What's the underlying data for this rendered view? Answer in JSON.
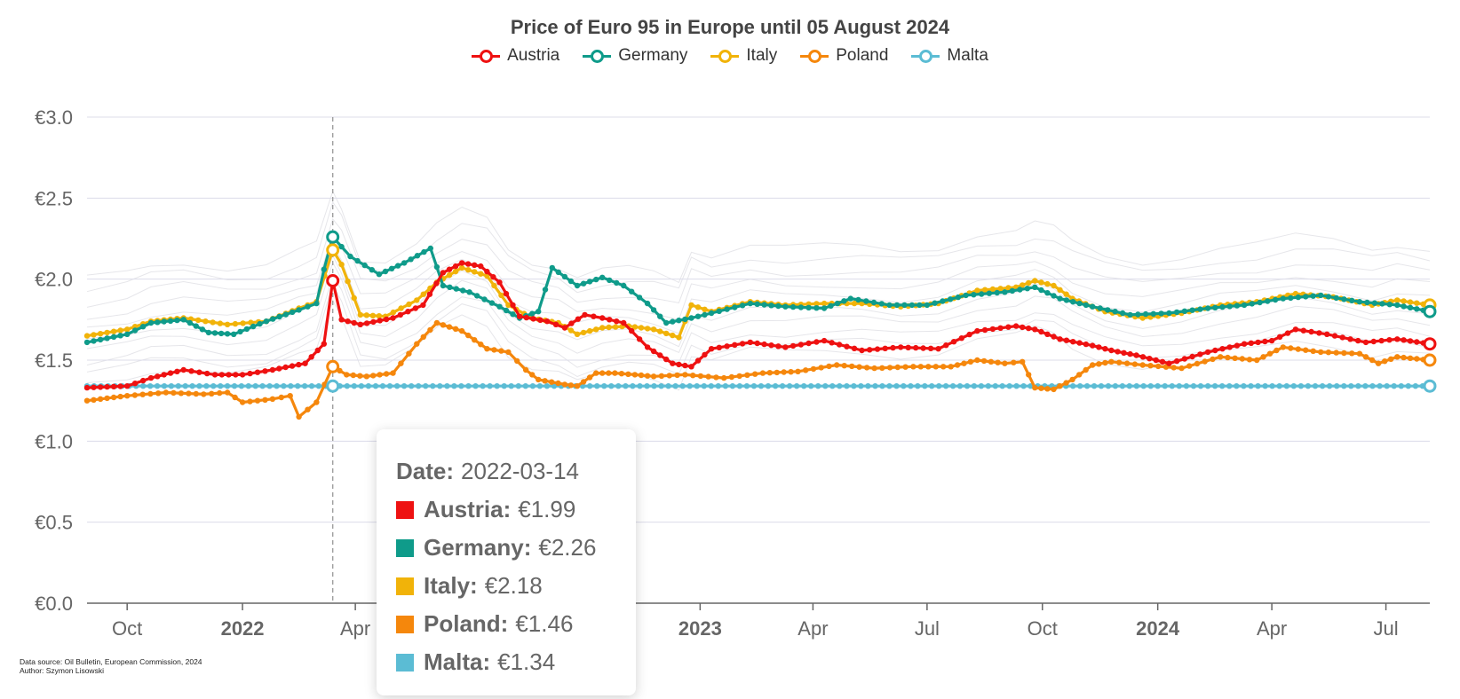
{
  "title": "Price of Euro 95 in Europe until 05 August 2024",
  "source_lines": [
    "Data source: Oil Bulletin, European Commission, 2024",
    "Author: Szymon Lisowski"
  ],
  "tooltip": {
    "date_label": "Date:",
    "date": "2022-03-14",
    "rows": [
      {
        "label": "Austria:",
        "value": "€1.99",
        "color": "#ee1111"
      },
      {
        "label": "Germany:",
        "value": "€2.26",
        "color": "#0f9b8a"
      },
      {
        "label": "Italy:",
        "value": "€2.18",
        "color": "#f1b309"
      },
      {
        "label": "Poland:",
        "value": "€1.46",
        "color": "#f5870c"
      },
      {
        "label": "Malta:",
        "value": "€1.34",
        "color": "#5bbcd4"
      }
    ]
  },
  "chart_data": {
    "type": "line",
    "title": "Price of Euro 95 in Europe until 05 August 2024",
    "xlabel": "",
    "ylabel": "",
    "ylim": [
      0,
      3.0
    ],
    "xlim": [
      "2021-08-30",
      "2024-08-05"
    ],
    "y_ticks": [
      "€0.0",
      "€0.5",
      "€1.0",
      "€1.5",
      "€2.0",
      "€2.5",
      "€3.0"
    ],
    "x_ticks": [
      {
        "date": "2021-10-01",
        "label": "Oct",
        "bold": false
      },
      {
        "date": "2022-01-01",
        "label": "2022",
        "bold": true
      },
      {
        "date": "2022-04-01",
        "label": "Apr",
        "bold": false
      },
      {
        "date": "2023-01-01",
        "label": "2023",
        "bold": true
      },
      {
        "date": "2023-04-01",
        "label": "Apr",
        "bold": false
      },
      {
        "date": "2023-07-01",
        "label": "Jul",
        "bold": false
      },
      {
        "date": "2023-10-01",
        "label": "Oct",
        "bold": false
      },
      {
        "date": "2024-01-01",
        "label": "2024",
        "bold": true
      },
      {
        "date": "2024-04-01",
        "label": "Apr",
        "bold": false
      },
      {
        "date": "2024-07-01",
        "label": "Jul",
        "bold": false
      }
    ],
    "grid": true,
    "legend_position": "top-center",
    "crosshair_date": "2022-03-14",
    "series": [
      {
        "name": "Austria",
        "color": "#ee1111",
        "points": [
          [
            "2021-08-30",
            1.33
          ],
          [
            "2021-10-01",
            1.34
          ],
          [
            "2021-10-20",
            1.39
          ],
          [
            "2021-11-15",
            1.44
          ],
          [
            "2021-12-10",
            1.41
          ],
          [
            "2022-01-01",
            1.41
          ],
          [
            "2022-01-25",
            1.44
          ],
          [
            "2022-02-20",
            1.48
          ],
          [
            "2022-03-07",
            1.6
          ],
          [
            "2022-03-14",
            1.99
          ],
          [
            "2022-03-21",
            1.75
          ],
          [
            "2022-04-05",
            1.72
          ],
          [
            "2022-05-01",
            1.76
          ],
          [
            "2022-05-25",
            1.84
          ],
          [
            "2022-06-10",
            2.04
          ],
          [
            "2022-06-25",
            2.1
          ],
          [
            "2022-07-10",
            2.08
          ],
          [
            "2022-07-25",
            1.98
          ],
          [
            "2022-08-10",
            1.77
          ],
          [
            "2022-09-01",
            1.74
          ],
          [
            "2022-09-15",
            1.7
          ],
          [
            "2022-10-01",
            1.78
          ],
          [
            "2022-10-15",
            1.76
          ],
          [
            "2022-11-01",
            1.73
          ],
          [
            "2022-11-20",
            1.58
          ],
          [
            "2022-12-10",
            1.48
          ],
          [
            "2022-12-25",
            1.46
          ],
          [
            "2023-01-10",
            1.57
          ],
          [
            "2023-02-10",
            1.61
          ],
          [
            "2023-03-10",
            1.58
          ],
          [
            "2023-04-10",
            1.62
          ],
          [
            "2023-05-10",
            1.56
          ],
          [
            "2023-06-10",
            1.58
          ],
          [
            "2023-07-10",
            1.57
          ],
          [
            "2023-08-10",
            1.68
          ],
          [
            "2023-09-10",
            1.71
          ],
          [
            "2023-09-25",
            1.69
          ],
          [
            "2023-10-15",
            1.63
          ],
          [
            "2023-11-10",
            1.59
          ],
          [
            "2023-11-25",
            1.56
          ],
          [
            "2023-12-15",
            1.53
          ],
          [
            "2024-01-10",
            1.48
          ],
          [
            "2024-02-10",
            1.55
          ],
          [
            "2024-03-10",
            1.6
          ],
          [
            "2024-04-01",
            1.62
          ],
          [
            "2024-04-20",
            1.69
          ],
          [
            "2024-05-15",
            1.66
          ],
          [
            "2024-06-15",
            1.61
          ],
          [
            "2024-07-10",
            1.63
          ],
          [
            "2024-08-05",
            1.6
          ]
        ]
      },
      {
        "name": "Germany",
        "color": "#0f9b8a",
        "points": [
          [
            "2021-08-30",
            1.61
          ],
          [
            "2021-10-01",
            1.66
          ],
          [
            "2021-10-20",
            1.73
          ],
          [
            "2021-11-15",
            1.75
          ],
          [
            "2021-12-05",
            1.67
          ],
          [
            "2021-12-25",
            1.66
          ],
          [
            "2022-01-20",
            1.74
          ],
          [
            "2022-02-15",
            1.81
          ],
          [
            "2022-03-01",
            1.85
          ],
          [
            "2022-03-07",
            2.06
          ],
          [
            "2022-03-14",
            2.26
          ],
          [
            "2022-03-28",
            2.14
          ],
          [
            "2022-04-20",
            2.03
          ],
          [
            "2022-05-10",
            2.1
          ],
          [
            "2022-05-31",
            2.19
          ],
          [
            "2022-06-10",
            1.96
          ],
          [
            "2022-07-01",
            1.92
          ],
          [
            "2022-07-25",
            1.83
          ],
          [
            "2022-08-10",
            1.76
          ],
          [
            "2022-08-25",
            1.8
          ],
          [
            "2022-09-05",
            2.07
          ],
          [
            "2022-09-25",
            1.96
          ],
          [
            "2022-10-15",
            2.01
          ],
          [
            "2022-11-01",
            1.96
          ],
          [
            "2022-11-20",
            1.85
          ],
          [
            "2022-12-05",
            1.73
          ],
          [
            "2022-12-25",
            1.76
          ],
          [
            "2023-01-10",
            1.79
          ],
          [
            "2023-02-10",
            1.85
          ],
          [
            "2023-03-10",
            1.83
          ],
          [
            "2023-04-10",
            1.82
          ],
          [
            "2023-05-01",
            1.88
          ],
          [
            "2023-06-01",
            1.84
          ],
          [
            "2023-07-01",
            1.84
          ],
          [
            "2023-08-01",
            1.9
          ],
          [
            "2023-09-01",
            1.92
          ],
          [
            "2023-09-25",
            1.95
          ],
          [
            "2023-10-15",
            1.88
          ],
          [
            "2023-11-10",
            1.83
          ],
          [
            "2023-12-10",
            1.78
          ],
          [
            "2024-01-10",
            1.79
          ],
          [
            "2024-02-10",
            1.82
          ],
          [
            "2024-03-10",
            1.84
          ],
          [
            "2024-04-10",
            1.88
          ],
          [
            "2024-05-10",
            1.9
          ],
          [
            "2024-06-10",
            1.86
          ],
          [
            "2024-07-10",
            1.84
          ],
          [
            "2024-08-05",
            1.8
          ]
        ]
      },
      {
        "name": "Italy",
        "color": "#f1b309",
        "points": [
          [
            "2021-08-30",
            1.65
          ],
          [
            "2021-10-01",
            1.69
          ],
          [
            "2021-10-20",
            1.74
          ],
          [
            "2021-11-15",
            1.76
          ],
          [
            "2021-12-20",
            1.72
          ],
          [
            "2022-01-20",
            1.74
          ],
          [
            "2022-02-15",
            1.82
          ],
          [
            "2022-03-01",
            1.86
          ],
          [
            "2022-03-14",
            2.18
          ],
          [
            "2022-03-21",
            2.09
          ],
          [
            "2022-04-05",
            1.78
          ],
          [
            "2022-04-25",
            1.77
          ],
          [
            "2022-05-20",
            1.87
          ],
          [
            "2022-06-05",
            1.98
          ],
          [
            "2022-06-25",
            2.07
          ],
          [
            "2022-07-15",
            2.02
          ],
          [
            "2022-08-01",
            1.84
          ],
          [
            "2022-08-20",
            1.76
          ],
          [
            "2022-09-10",
            1.73
          ],
          [
            "2022-09-25",
            1.66
          ],
          [
            "2022-10-15",
            1.7
          ],
          [
            "2022-11-05",
            1.71
          ],
          [
            "2022-11-25",
            1.69
          ],
          [
            "2022-12-15",
            1.64
          ],
          [
            "2022-12-25",
            1.84
          ],
          [
            "2023-01-10",
            1.8
          ],
          [
            "2023-02-10",
            1.86
          ],
          [
            "2023-03-10",
            1.84
          ],
          [
            "2023-04-10",
            1.85
          ],
          [
            "2023-05-10",
            1.85
          ],
          [
            "2023-06-10",
            1.83
          ],
          [
            "2023-07-10",
            1.85
          ],
          [
            "2023-08-10",
            1.93
          ],
          [
            "2023-09-10",
            1.95
          ],
          [
            "2023-09-25",
            1.99
          ],
          [
            "2023-10-10",
            1.96
          ],
          [
            "2023-10-25",
            1.88
          ],
          [
            "2023-11-20",
            1.8
          ],
          [
            "2023-12-20",
            1.76
          ],
          [
            "2024-01-20",
            1.79
          ],
          [
            "2024-02-20",
            1.84
          ],
          [
            "2024-03-20",
            1.86
          ],
          [
            "2024-04-20",
            1.91
          ],
          [
            "2024-05-20",
            1.89
          ],
          [
            "2024-06-20",
            1.84
          ],
          [
            "2024-07-10",
            1.87
          ],
          [
            "2024-08-05",
            1.84
          ]
        ]
      },
      {
        "name": "Poland",
        "color": "#f5870c",
        "points": [
          [
            "2021-08-30",
            1.25
          ],
          [
            "2021-10-01",
            1.28
          ],
          [
            "2021-11-01",
            1.3
          ],
          [
            "2021-12-01",
            1.29
          ],
          [
            "2021-12-20",
            1.3
          ],
          [
            "2022-01-01",
            1.24
          ],
          [
            "2022-01-25",
            1.26
          ],
          [
            "2022-02-08",
            1.28
          ],
          [
            "2022-02-15",
            1.15
          ],
          [
            "2022-03-01",
            1.24
          ],
          [
            "2022-03-14",
            1.46
          ],
          [
            "2022-03-25",
            1.41
          ],
          [
            "2022-04-10",
            1.4
          ],
          [
            "2022-05-01",
            1.42
          ],
          [
            "2022-05-20",
            1.6
          ],
          [
            "2022-06-05",
            1.73
          ],
          [
            "2022-06-25",
            1.68
          ],
          [
            "2022-07-15",
            1.57
          ],
          [
            "2022-08-01",
            1.55
          ],
          [
            "2022-08-15",
            1.44
          ],
          [
            "2022-08-25",
            1.38
          ],
          [
            "2022-09-15",
            1.35
          ],
          [
            "2022-09-25",
            1.34
          ],
          [
            "2022-10-10",
            1.42
          ],
          [
            "2022-10-25",
            1.42
          ],
          [
            "2022-11-10",
            1.41
          ],
          [
            "2022-11-25",
            1.4
          ],
          [
            "2022-12-20",
            1.41
          ],
          [
            "2023-01-20",
            1.39
          ],
          [
            "2023-02-20",
            1.42
          ],
          [
            "2023-03-20",
            1.43
          ],
          [
            "2023-04-20",
            1.47
          ],
          [
            "2023-05-20",
            1.45
          ],
          [
            "2023-06-20",
            1.46
          ],
          [
            "2023-07-20",
            1.46
          ],
          [
            "2023-08-10",
            1.5
          ],
          [
            "2023-09-01",
            1.48
          ],
          [
            "2023-09-15",
            1.49
          ],
          [
            "2023-09-25",
            1.33
          ],
          [
            "2023-10-10",
            1.32
          ],
          [
            "2023-10-25",
            1.38
          ],
          [
            "2023-11-10",
            1.47
          ],
          [
            "2023-11-25",
            1.49
          ],
          [
            "2023-12-20",
            1.47
          ],
          [
            "2024-01-20",
            1.45
          ],
          [
            "2024-02-20",
            1.52
          ],
          [
            "2024-03-20",
            1.5
          ],
          [
            "2024-04-10",
            1.58
          ],
          [
            "2024-05-10",
            1.55
          ],
          [
            "2024-06-10",
            1.54
          ],
          [
            "2024-06-25",
            1.48
          ],
          [
            "2024-07-10",
            1.52
          ],
          [
            "2024-08-05",
            1.5
          ]
        ]
      },
      {
        "name": "Malta",
        "color": "#5bbcd4",
        "points": [
          [
            "2021-08-30",
            1.34
          ],
          [
            "2022-03-14",
            1.34
          ],
          [
            "2022-12-01",
            1.34
          ],
          [
            "2023-06-01",
            1.34
          ],
          [
            "2024-01-01",
            1.34
          ],
          [
            "2024-08-05",
            1.34
          ]
        ]
      }
    ]
  }
}
